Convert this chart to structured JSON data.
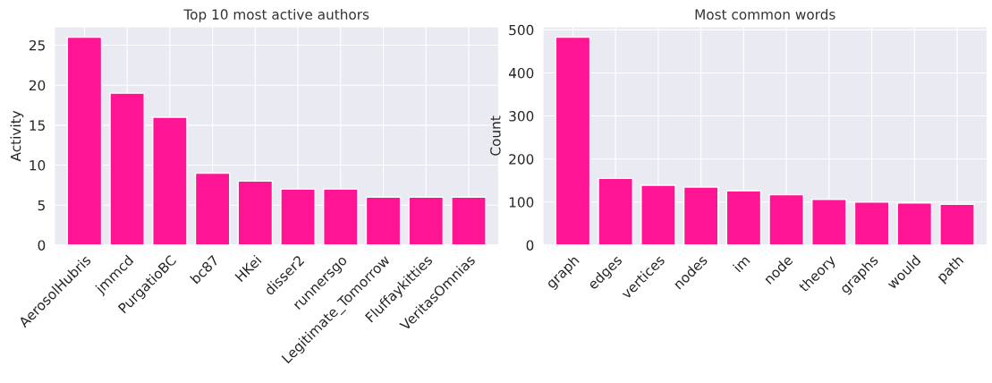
{
  "chart_data": [
    {
      "type": "bar",
      "title": "Top 10 most active authors",
      "ylabel": "Activity",
      "categories": [
        "AerosolHubris",
        "jmmcd",
        "PurgatioBC",
        "bc87",
        "HKei",
        "disser2",
        "runnersgo",
        "Legitimate_Tomorrow",
        "Fluffaykitties",
        "VeritasOmnias"
      ],
      "values": [
        26,
        19,
        16,
        9,
        8,
        7,
        7,
        6,
        6,
        6
      ],
      "color": "#ff1493",
      "ylim": [
        0,
        27.3
      ],
      "yticks": [
        0,
        5,
        10,
        15,
        20,
        25
      ],
      "grid": true
    },
    {
      "type": "bar",
      "title": "Most common words",
      "ylabel": "Count",
      "categories": [
        "graph",
        "edges",
        "vertices",
        "nodes",
        "im",
        "node",
        "theory",
        "graphs",
        "would",
        "path"
      ],
      "values": [
        483,
        155,
        139,
        135,
        126,
        117,
        106,
        100,
        98,
        95
      ],
      "color": "#ff1493",
      "ylim": [
        0,
        507
      ],
      "yticks": [
        0,
        100,
        200,
        300,
        400,
        500
      ],
      "grid": true
    }
  ]
}
